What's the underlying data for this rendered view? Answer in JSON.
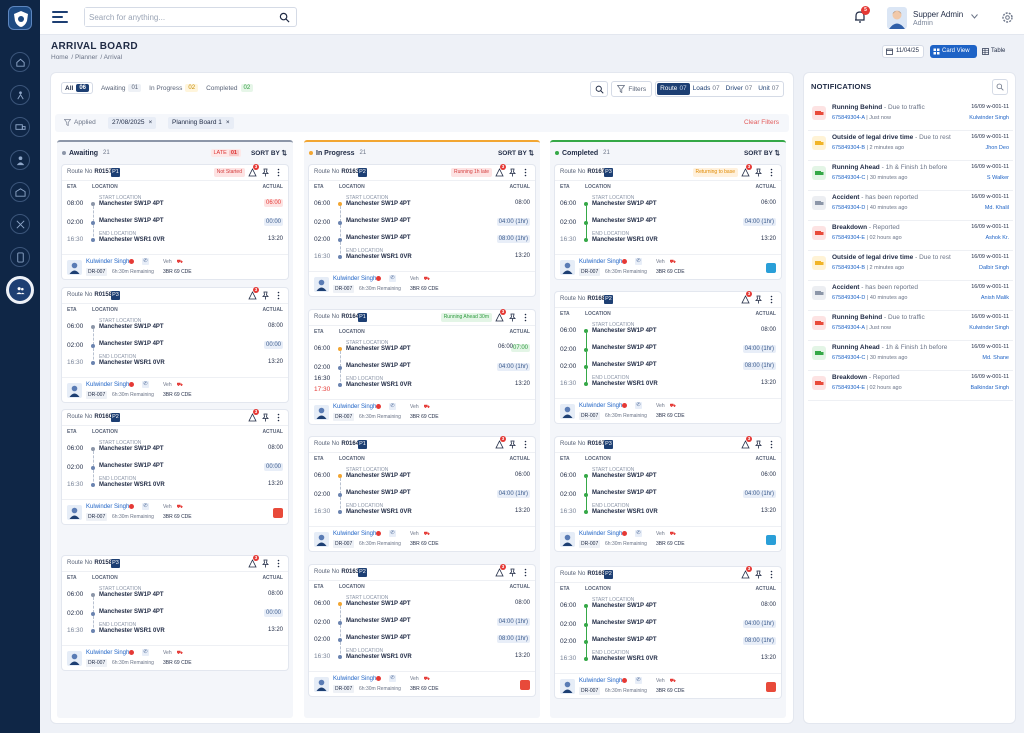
{
  "app": {
    "search_placeholder": "Search for anything...",
    "notif_count": "5",
    "user_name": "Supper Admin",
    "user_role": "Admin"
  },
  "nav": {
    "icons": [
      "home-icon",
      "routes-icon",
      "truck-icon",
      "person-icon",
      "depot-icon",
      "tools-icon",
      "phone-icon",
      "team-icon"
    ],
    "active_index": 7
  },
  "page": {
    "title": "ARRIVAL BOARD",
    "breadcrumbs": [
      "Home",
      "/ Planner",
      "/ Arrival"
    ],
    "date": "11/04/25",
    "view_card": "Card View",
    "view_table": "Table"
  },
  "filters": {
    "tabs": [
      {
        "label": "All",
        "count": "06"
      },
      {
        "label": "Awaiting",
        "count": "01"
      },
      {
        "label": "In Progress",
        "count": "02"
      },
      {
        "label": "Completed",
        "count": "02"
      }
    ],
    "filters_label": "Filters",
    "groups": [
      {
        "label": "Route",
        "count": "07"
      },
      {
        "label": "Loads",
        "count": "07"
      },
      {
        "label": "Driver",
        "count": "07"
      },
      {
        "label": "Unit",
        "count": "07"
      }
    ],
    "applied_label": "Applied",
    "chips": [
      "27/08/2025",
      "Planning Board 1"
    ],
    "chip_close": "×",
    "clear": "Clear Filters"
  },
  "board": {
    "route_prefix": "Route No",
    "eta": "ETA",
    "location": "LOCATION",
    "actual": "ACTUAL",
    "start_label": "START LOCATION",
    "end_label": "END LOCATION",
    "driver": "Kulwinder Singh",
    "driver_id": "DR-007",
    "remaining": "6h:30m Remaining",
    "veh": "Veh",
    "plate": "3BR 69 CDE",
    "late_label": "LATE",
    "late_count": "01",
    "sort_by": "SORT BY ⇅",
    "columns": [
      {
        "title": "Awaiting",
        "count": "21"
      },
      {
        "title": "In Progress",
        "count": "21"
      },
      {
        "title": "Completed",
        "count": "21"
      }
    ]
  },
  "cards": {
    "c1_1": {
      "route": "R0157",
      "pr": "P1",
      "status": "Not Started",
      "stops": [
        {
          "eta": "08:00",
          "label": "START LOCATION",
          "loc": "Manchester SW1P 4PT",
          "act": "06:00"
        },
        {
          "eta": "02:00",
          "label": "",
          "loc": "Manchester SW1P 4PT",
          "act": "00:00"
        },
        {
          "eta": "16:30",
          "label": "END LOCATION",
          "loc": "Manchester WSR1 0VR",
          "act": "13:20"
        }
      ]
    },
    "c1_2": {
      "route": "R0158",
      "pr": "P3",
      "stops": [
        {
          "eta": "06:00",
          "label": "START LOCATION",
          "loc": "Manchester SW1P 4PT",
          "act": "08:00"
        },
        {
          "eta": "02:00",
          "label": "",
          "loc": "Manchester SW1P 4PT",
          "act": "00:00"
        },
        {
          "eta": "16:30",
          "label": "END LOCATION",
          "loc": "Manchester WSR1 0VR",
          "act": "13:20"
        }
      ]
    },
    "c1_3": {
      "route": "R0160",
      "pr": "P2",
      "stops": [
        {
          "eta": "06:00",
          "label": "START LOCATION",
          "loc": "Manchester SW1P 4PT",
          "act": "08:00"
        },
        {
          "eta": "02:00",
          "label": "",
          "loc": "Manchester SW1P 4PT",
          "act": "00:00"
        },
        {
          "eta": "16:30",
          "label": "END LOCATION",
          "loc": "Manchester WSR1 0VR",
          "act": "13:20"
        }
      ]
    },
    "c1_4": {
      "route": "R0158",
      "pr": "P3",
      "stops": [
        {
          "eta": "06:00",
          "label": "START LOCATION",
          "loc": "Manchester SW1P 4PT",
          "act": "08:00"
        },
        {
          "eta": "02:00",
          "label": "",
          "loc": "Manchester SW1P 4PT",
          "act": "00:00"
        },
        {
          "eta": "16:30",
          "label": "END LOCATION",
          "loc": "Manchester WSR1 0VR",
          "act": "13:20"
        }
      ]
    },
    "c2_1": {
      "route": "R0163",
      "pr": "P2",
      "status": "Running 1h late",
      "stops": [
        {
          "eta": "06:00",
          "label": "START LOCATION",
          "loc": "Manchester SW1P 4PT",
          "act": "08:00"
        },
        {
          "eta": "02:00",
          "label": "",
          "loc": "Manchester SW1P 4PT",
          "act": "04:00 (1hr)"
        },
        {
          "eta": "02:00",
          "label": "",
          "loc": "Manchester SW1P 4PT",
          "act": "08:00 (1hr)"
        },
        {
          "eta": "16:30",
          "label": "END LOCATION",
          "loc": "Manchester WSR1 0VR",
          "act": "13:20"
        }
      ]
    },
    "c2_2": {
      "route": "R0164",
      "pr": "P1",
      "status": "Running Ahead 30m",
      "stops": [
        {
          "eta": "06:00",
          "label": "START LOCATION",
          "loc": "Manchester SW1P 4PT",
          "act": "06:00",
          "act2": "07:00"
        },
        {
          "eta": "02:00",
          "label": "",
          "loc": "Manchester SW1P 4PT",
          "act": "04:00 (1hr)"
        },
        {
          "eta": "16:30",
          "eta2": "17:30",
          "label": "END LOCATION",
          "loc": "Manchester WSR1 0VR",
          "act": "13:20"
        }
      ]
    },
    "c2_3": {
      "route": "R0164",
      "pr": "P1",
      "stops": [
        {
          "eta": "06:00",
          "label": "START LOCATION",
          "loc": "Manchester SW1P 4PT",
          "act": "06:00"
        },
        {
          "eta": "02:00",
          "label": "",
          "loc": "Manchester SW1P 4PT",
          "act": "04:00 (1hr)"
        },
        {
          "eta": "16:30",
          "label": "END LOCATION",
          "loc": "Manchester WSR1 0VR",
          "act": "13:20"
        }
      ]
    },
    "c2_4": {
      "route": "R0163",
      "pr": "P2",
      "stops": [
        {
          "eta": "06:00",
          "label": "START LOCATION",
          "loc": "Manchester SW1P 4PT",
          "act": "08:00"
        },
        {
          "eta": "02:00",
          "label": "",
          "loc": "Manchester SW1P 4PT",
          "act": "04:00 (1hr)"
        },
        {
          "eta": "02:00",
          "label": "",
          "loc": "Manchester SW1P 4PT",
          "act": "08:00 (1hr)"
        },
        {
          "eta": "16:30",
          "label": "END LOCATION",
          "loc": "Manchester WSR1 0VR",
          "act": "13:20"
        }
      ]
    },
    "c3_1": {
      "route": "R0167",
      "pr": "P3",
      "status": "Returning to base",
      "stops": [
        {
          "eta": "06:00",
          "label": "START LOCATION",
          "loc": "Manchester SW1P 4PT",
          "act": "06:00"
        },
        {
          "eta": "02:00",
          "label": "",
          "loc": "Manchester SW1P 4PT",
          "act": "04:00 (1hr)"
        },
        {
          "eta": "16:30",
          "label": "END LOCATION",
          "loc": "Manchester WSR1 0VR",
          "act": "13:20"
        }
      ]
    },
    "c3_2": {
      "route": "R0168",
      "pr": "P2",
      "stops": [
        {
          "eta": "06:00",
          "label": "START LOCATION",
          "loc": "Manchester SW1P 4PT",
          "act": "08:00"
        },
        {
          "eta": "02:00",
          "label": "",
          "loc": "Manchester SW1P 4PT",
          "act": "04:00 (1hr)"
        },
        {
          "eta": "02:00",
          "label": "",
          "loc": "Manchester SW1P 4PT",
          "act": "08:00 (1hr)"
        },
        {
          "eta": "16:30",
          "label": "END LOCATION",
          "loc": "Manchester WSR1 0VR",
          "act": "13:20"
        }
      ]
    },
    "c3_3": {
      "route": "R0167",
      "pr": "P3",
      "stops": [
        {
          "eta": "06:00",
          "label": "START LOCATION",
          "loc": "Manchester SW1P 4PT",
          "act": "06:00"
        },
        {
          "eta": "02:00",
          "label": "",
          "loc": "Manchester SW1P 4PT",
          "act": "04:00 (1hr)"
        },
        {
          "eta": "16:30",
          "label": "END LOCATION",
          "loc": "Manchester WSR1 0VR",
          "act": "13:20"
        }
      ]
    },
    "c3_4": {
      "route": "R0168",
      "pr": "P2",
      "stops": [
        {
          "eta": "06:00",
          "label": "START LOCATION",
          "loc": "Manchester SW1P 4PT",
          "act": "08:00"
        },
        {
          "eta": "02:00",
          "label": "",
          "loc": "Manchester SW1P 4PT",
          "act": "04:00 (1hr)"
        },
        {
          "eta": "02:00",
          "label": "",
          "loc": "Manchester SW1P 4PT",
          "act": "08:00 (1hr)"
        },
        {
          "eta": "16:30",
          "label": "END LOCATION",
          "loc": "Manchester WSR1 0VR",
          "act": "13:20"
        }
      ]
    }
  },
  "notifications": {
    "title": "NOTIFICATIONS",
    "items": [
      {
        "type": "Running Behind",
        "detail": "Due to traffic",
        "ref": "675849304-A",
        "time": "Just now",
        "code": "16/09 w-001-11",
        "driver": "Kulwinder Singh",
        "color": "red"
      },
      {
        "type": "Outside of legal drive time",
        "detail": "Due to rest",
        "ref": "675849304-B",
        "time": "2 minutes ago",
        "code": "16/09 w-001-11",
        "driver": "Jhon Deo",
        "color": "yellow"
      },
      {
        "type": "Running Ahead",
        "detail": "1h & Finish 1h before",
        "ref": "675849304-C",
        "time": "30 minutes ago",
        "code": "16/09 w-001-11",
        "driver": "S Walker",
        "color": "green"
      },
      {
        "type": "Accident",
        "detail": "has been reported",
        "ref": "675849304-D",
        "time": "40 minutes ago",
        "code": "16/09 w-001-11",
        "driver": "Md. Khalil",
        "color": "grey"
      },
      {
        "type": "Breakdown",
        "detail": "Reported",
        "ref": "675849304-E",
        "time": "02 hours ago",
        "code": "16/09 w-001-11",
        "driver": "Ashok Kr.",
        "color": "red"
      },
      {
        "type": "Outside of legal drive time",
        "detail": "Due to rest",
        "ref": "675849304-B",
        "time": "2 minutes ago",
        "code": "16/09 w-001-11",
        "driver": "Dalbir Singh",
        "color": "yellow"
      },
      {
        "type": "Accident",
        "detail": "has been reported",
        "ref": "675849304-D",
        "time": "40 minutes ago",
        "code": "16/09 w-001-11",
        "driver": "Anish Malik",
        "color": "grey"
      },
      {
        "type": "Running Behind",
        "detail": "Due to traffic",
        "ref": "675849304-A",
        "time": "Just now",
        "code": "16/09 w-001-11",
        "driver": "Kulwinder Singh",
        "color": "red"
      },
      {
        "type": "Running Ahead",
        "detail": "1h & Finish 1h before",
        "ref": "675849304-C",
        "time": "30 minutes ago",
        "code": "16/09 w-001-11",
        "driver": "Md. Shane",
        "color": "green"
      },
      {
        "type": "Breakdown",
        "detail": "Reported",
        "ref": "675849304-E",
        "time": "02 hours ago",
        "code": "16/09 w-001-11",
        "driver": "Balkindar Singh",
        "color": "red"
      }
    ]
  }
}
